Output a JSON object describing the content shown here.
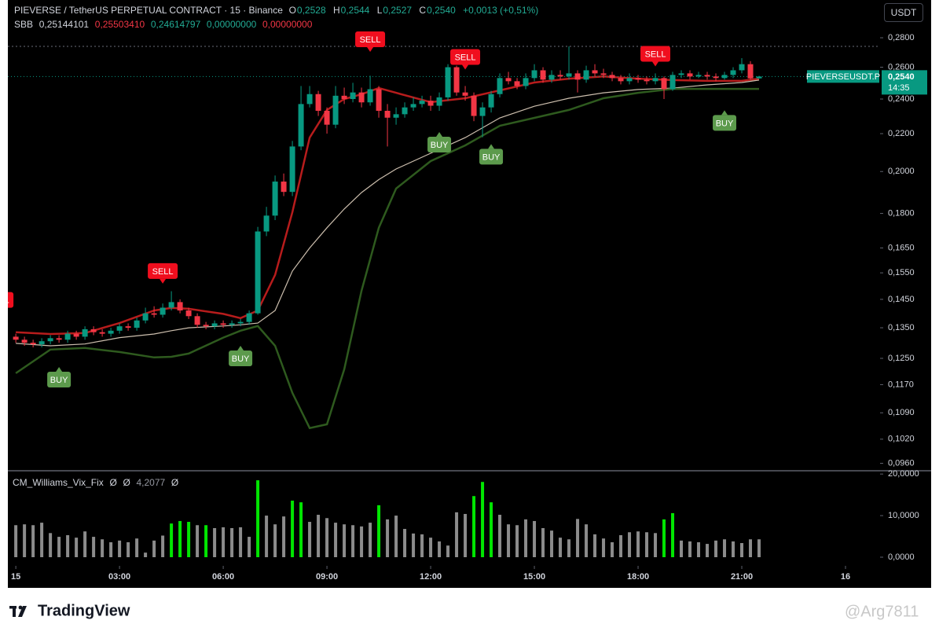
{
  "header": {
    "title": "PIEVERSE / TetherUS PERPETUAL CONTRACT · 15 · Binance",
    "ohlc": [
      {
        "label": "O",
        "value": "0,2528"
      },
      {
        "label": "H",
        "value": "0,2544"
      },
      {
        "label": "L",
        "value": "0,2527"
      },
      {
        "label": "C",
        "value": "0,2540"
      }
    ],
    "change": "+0,0013 (+0,51%)"
  },
  "toolbar": {
    "currency": "USDT"
  },
  "footer": {
    "brand": "TradingView",
    "watermark": "@Arg7811"
  },
  "chart_data": [
    {
      "type": "candlestick",
      "log_scale": true,
      "grid": false,
      "up_color": "#089981",
      "down_color": "#f23645",
      "xlim": [
        -0.23,
        25
      ],
      "ylim": [
        0.0944,
        0.3079
      ],
      "xticks": [
        {
          "value": 0,
          "label": "15"
        },
        {
          "value": 3,
          "label": "03:00"
        },
        {
          "value": 6,
          "label": "06:00"
        },
        {
          "value": 9,
          "label": "09:00"
        },
        {
          "value": 12,
          "label": "12:00"
        },
        {
          "value": 15,
          "label": "15:00"
        },
        {
          "value": 18,
          "label": "18:00"
        },
        {
          "value": 21,
          "label": "21:00"
        },
        {
          "value": 24,
          "label": "16"
        }
      ],
      "yticks": [
        {
          "value": 0.28,
          "label": "0,2800"
        },
        {
          "value": 0.26,
          "label": "0,2600"
        },
        {
          "value": 0.24,
          "label": "0,2400"
        },
        {
          "value": 0.22,
          "label": "0,2200"
        },
        {
          "value": 0.2,
          "label": "0,2000"
        },
        {
          "value": 0.18,
          "label": "0,1800"
        },
        {
          "value": 0.165,
          "label": "0,1650"
        },
        {
          "value": 0.155,
          "label": "0,1550"
        },
        {
          "value": 0.145,
          "label": "0,1450"
        },
        {
          "value": 0.135,
          "label": "0,1350"
        },
        {
          "value": 0.125,
          "label": "0,1250"
        },
        {
          "value": 0.117,
          "label": "0,1170"
        },
        {
          "value": 0.109,
          "label": "0,1090"
        },
        {
          "value": 0.102,
          "label": "0,1020"
        },
        {
          "value": 0.096,
          "label": "0,0960"
        }
      ],
      "x": [
        0,
        0.25,
        0.5,
        0.75,
        1,
        1.25,
        1.5,
        1.75,
        2,
        2.25,
        2.5,
        2.75,
        3,
        3.25,
        3.5,
        3.75,
        4,
        4.25,
        4.5,
        4.75,
        5,
        5.25,
        5.5,
        5.75,
        6,
        6.25,
        6.5,
        6.75,
        7,
        7.25,
        7.5,
        7.75,
        8,
        8.25,
        8.5,
        8.75,
        9,
        9.25,
        9.5,
        9.75,
        10,
        10.25,
        10.5,
        10.75,
        11,
        11.25,
        11.5,
        11.75,
        12,
        12.25,
        12.5,
        12.75,
        13,
        13.25,
        13.5,
        13.75,
        14,
        14.25,
        14.5,
        14.75,
        15,
        15.25,
        15.5,
        15.75,
        16,
        16.25,
        16.5,
        16.75,
        17,
        17.25,
        17.5,
        17.75,
        18,
        18.25,
        18.5,
        18.75,
        19,
        19.25,
        19.5,
        19.75,
        20,
        20.25,
        20.5,
        20.75,
        21,
        21.25,
        21.5
      ],
      "open": [
        0.132,
        0.131,
        0.13,
        0.1295,
        0.1305,
        0.1315,
        0.131,
        0.133,
        0.132,
        0.1345,
        0.1335,
        0.133,
        0.134,
        0.1355,
        0.135,
        0.1375,
        0.14,
        0.1395,
        0.142,
        0.144,
        0.141,
        0.139,
        0.136,
        0.1355,
        0.1365,
        0.136,
        0.1365,
        0.137,
        0.14,
        0.172,
        0.179,
        0.195,
        0.19,
        0.213,
        0.237,
        0.243,
        0.233,
        0.225,
        0.242,
        0.24,
        0.244,
        0.238,
        0.246,
        0.233,
        0.229,
        0.231,
        0.235,
        0.237,
        0.239,
        0.236,
        0.241,
        0.26,
        0.244,
        0.242,
        0.23,
        0.235,
        0.243,
        0.253,
        0.251,
        0.248,
        0.253,
        0.258,
        0.252,
        0.255,
        0.254,
        0.256,
        0.252,
        0.258,
        0.256,
        0.255,
        0.253,
        0.251,
        0.253,
        0.252,
        0.251,
        0.253,
        0.246,
        0.255,
        0.256,
        0.254,
        0.255,
        0.254,
        0.253,
        0.255,
        0.258,
        0.262,
        0.2528
      ],
      "high": [
        0.133,
        0.132,
        0.131,
        0.1315,
        0.1325,
        0.1325,
        0.134,
        0.134,
        0.1355,
        0.1355,
        0.1345,
        0.135,
        0.1365,
        0.1365,
        0.1385,
        0.142,
        0.1425,
        0.1435,
        0.148,
        0.145,
        0.142,
        0.14,
        0.137,
        0.1375,
        0.1375,
        0.1375,
        0.138,
        0.141,
        0.174,
        0.183,
        0.198,
        0.199,
        0.216,
        0.248,
        0.248,
        0.245,
        0.235,
        0.248,
        0.247,
        0.25,
        0.247,
        0.2545,
        0.248,
        0.237,
        0.235,
        0.238,
        0.241,
        0.242,
        0.242,
        0.244,
        0.262,
        0.261,
        0.248,
        0.244,
        0.238,
        0.245,
        0.256,
        0.257,
        0.253,
        0.256,
        0.262,
        0.26,
        0.258,
        0.258,
        0.274,
        0.258,
        0.261,
        0.262,
        0.259,
        0.257,
        0.255,
        0.256,
        0.255,
        0.254,
        0.256,
        0.254,
        0.257,
        0.258,
        0.258,
        0.257,
        0.257,
        0.256,
        0.257,
        0.26,
        0.266,
        0.264,
        0.2544
      ],
      "low": [
        0.13,
        0.129,
        0.1285,
        0.1285,
        0.1295,
        0.13,
        0.13,
        0.131,
        0.131,
        0.1325,
        0.132,
        0.132,
        0.133,
        0.134,
        0.134,
        0.1365,
        0.1385,
        0.1385,
        0.141,
        0.14,
        0.138,
        0.135,
        0.1345,
        0.1345,
        0.135,
        0.135,
        0.1355,
        0.136,
        0.1395,
        0.17,
        0.177,
        0.188,
        0.188,
        0.211,
        0.235,
        0.23,
        0.22,
        0.223,
        0.237,
        0.238,
        0.235,
        0.236,
        0.229,
        0.213,
        0.225,
        0.229,
        0.233,
        0.235,
        0.233,
        0.233,
        0.239,
        0.242,
        0.239,
        0.227,
        0.218,
        0.232,
        0.241,
        0.249,
        0.246,
        0.246,
        0.251,
        0.25,
        0.25,
        0.252,
        0.252,
        0.244,
        0.25,
        0.254,
        0.253,
        0.251,
        0.249,
        0.249,
        0.25,
        0.249,
        0.249,
        0.24,
        0.245,
        0.253,
        0.252,
        0.253,
        0.252,
        0.251,
        0.252,
        0.253,
        0.256,
        0.252,
        0.2527
      ],
      "close": [
        0.131,
        0.13,
        0.1295,
        0.1305,
        0.1315,
        0.131,
        0.133,
        0.132,
        0.1345,
        0.1335,
        0.133,
        0.134,
        0.1355,
        0.135,
        0.1375,
        0.14,
        0.1395,
        0.142,
        0.144,
        0.141,
        0.139,
        0.136,
        0.1355,
        0.1365,
        0.136,
        0.1365,
        0.137,
        0.14,
        0.172,
        0.179,
        0.195,
        0.19,
        0.213,
        0.237,
        0.243,
        0.233,
        0.225,
        0.242,
        0.24,
        0.244,
        0.238,
        0.246,
        0.233,
        0.229,
        0.231,
        0.235,
        0.237,
        0.239,
        0.236,
        0.241,
        0.26,
        0.244,
        0.242,
        0.23,
        0.235,
        0.243,
        0.253,
        0.251,
        0.248,
        0.253,
        0.258,
        0.252,
        0.255,
        0.254,
        0.256,
        0.252,
        0.258,
        0.256,
        0.255,
        0.253,
        0.251,
        0.253,
        0.252,
        0.251,
        0.253,
        0.246,
        0.255,
        0.256,
        0.254,
        0.255,
        0.254,
        0.253,
        0.255,
        0.258,
        0.262,
        0.2528,
        0.254
      ],
      "indicator": {
        "name": "SBB",
        "values": [
          {
            "text": "0,25144101",
            "color": "#d1d4dc"
          },
          {
            "text": "0,25503410",
            "color": "#f23645"
          },
          {
            "text": "0,24614797",
            "color": "#22ab94"
          },
          {
            "text": "0,00000000",
            "color": "#22ab94"
          },
          {
            "text": "0,00000000",
            "color": "#f23645"
          }
        ]
      },
      "line_x": [
        0,
        1,
        2,
        3,
        4,
        4.5,
        5,
        6,
        6.5,
        7,
        7.5,
        8,
        8.5,
        9,
        9.5,
        10,
        10.5,
        11,
        12,
        13,
        14,
        15,
        16,
        17,
        18,
        19,
        20,
        21,
        21.5
      ],
      "lines": [
        {
          "color": "#b71c1c",
          "width": 2.5,
          "values": [
            0.1335,
            0.1329,
            0.1332,
            0.1366,
            0.141,
            0.1419,
            0.1416,
            0.1398,
            0.1383,
            0.141,
            0.1542,
            0.1806,
            0.2178,
            0.2335,
            0.24,
            0.2429,
            0.2467,
            0.2438,
            0.2381,
            0.2405,
            0.2453,
            0.2502,
            0.2526,
            0.254,
            0.2526,
            0.2517,
            0.2512,
            0.2512,
            0.2526
          ]
        },
        {
          "color": "#cdbfae",
          "width": 1.2,
          "values": [
            0.1298,
            0.129,
            0.1296,
            0.1317,
            0.1329,
            0.134,
            0.135,
            0.1356,
            0.136,
            0.1366,
            0.141,
            0.1557,
            0.165,
            0.1736,
            0.182,
            0.1897,
            0.196,
            0.2013,
            0.2094,
            0.2178,
            0.2289,
            0.2357,
            0.2405,
            0.2438,
            0.2458,
            0.2467,
            0.2487,
            0.2502,
            0.2517
          ]
        },
        {
          "color": "#2e5a1e",
          "width": 2.5,
          "values": [
            0.1204,
            0.1278,
            0.1283,
            0.127,
            0.1253,
            0.1255,
            0.1265,
            0.1317,
            0.134,
            0.1356,
            0.129,
            0.1146,
            0.1049,
            0.1059,
            0.1216,
            0.1482,
            0.1736,
            0.1916,
            0.2053,
            0.2136,
            0.2244,
            0.2289,
            0.2335,
            0.2405,
            0.2438,
            0.2462,
            0.2462,
            0.2462,
            0.2462
          ]
        }
      ],
      "signals": [
        {
          "label": "SELL",
          "x": -0.5,
          "price": 0.1448,
          "color": "#f00e1e"
        },
        {
          "label": "BUY",
          "x": 1.25,
          "price": 0.1185,
          "color": "#5c9a4c"
        },
        {
          "label": "SELL",
          "x": 4.25,
          "price": 0.1557,
          "color": "#f00e1e"
        },
        {
          "label": "BUY",
          "x": 6.5,
          "price": 0.125,
          "color": "#5c9a4c"
        },
        {
          "label": "SELL",
          "x": 10.25,
          "price": 0.2789,
          "color": "#f00e1e"
        },
        {
          "label": "BUY",
          "x": 12.25,
          "price": 0.214,
          "color": "#5c9a4c"
        },
        {
          "label": "SELL",
          "x": 13,
          "price": 0.2668,
          "color": "#f00e1e"
        },
        {
          "label": "BUY",
          "x": 13.75,
          "price": 0.2076,
          "color": "#5c9a4c"
        },
        {
          "label": "SELL",
          "x": 18.5,
          "price": 0.2689,
          "color": "#f00e1e"
        },
        {
          "label": "BUY",
          "x": 20.5,
          "price": 0.226,
          "color": "#5c9a4c"
        }
      ],
      "price_tag": {
        "symbol": "PIEVERSEUSDT.P",
        "price": "0,2540",
        "countdown": "14:35",
        "color": "#089981"
      }
    },
    {
      "type": "bar",
      "title": "CM_Williams_Vix_Fix",
      "legend_values": [
        "Ø",
        "Ø",
        "4,2077",
        "Ø"
      ],
      "xlim": [
        -0.23,
        25
      ],
      "ylim": [
        -1.7,
        20.6
      ],
      "yticks": [
        {
          "value": 20,
          "label": "20,0000"
        },
        {
          "value": 10,
          "label": "10,0000"
        },
        {
          "value": 0,
          "label": "0,0000"
        }
      ],
      "x": [
        0,
        0.25,
        0.5,
        0.75,
        1,
        1.25,
        1.5,
        1.75,
        2,
        2.25,
        2.5,
        2.75,
        3,
        3.25,
        3.5,
        3.75,
        4,
        4.25,
        4.5,
        4.75,
        5,
        5.25,
        5.5,
        5.75,
        6,
        6.25,
        6.5,
        6.75,
        7,
        7.25,
        7.5,
        7.75,
        8,
        8.25,
        8.5,
        8.75,
        9,
        9.25,
        9.5,
        9.75,
        10,
        10.25,
        10.5,
        10.75,
        11,
        11.25,
        11.5,
        11.75,
        12,
        12.25,
        12.5,
        12.75,
        13,
        13.25,
        13.5,
        13.75,
        14,
        14.25,
        14.5,
        14.75,
        15,
        15.25,
        15.5,
        15.75,
        16,
        16.25,
        16.5,
        16.75,
        17,
        17.25,
        17.5,
        17.75,
        18,
        18.25,
        18.5,
        18.75,
        19,
        19.25,
        19.5,
        19.75,
        20,
        20.25,
        20.5,
        20.75,
        21,
        21.25,
        21.5
      ],
      "values": [
        7.7,
        7.9,
        7.7,
        8.3,
        5.8,
        4.9,
        5.3,
        4.7,
        6.2,
        4.9,
        4.3,
        3.6,
        4.0,
        3.6,
        4.5,
        1.1,
        4.0,
        5.2,
        8.1,
        8.7,
        8.5,
        7.7,
        7.7,
        7.0,
        7.2,
        7.0,
        7.2,
        4.9,
        18.5,
        10.0,
        7.9,
        9.8,
        13.6,
        13.2,
        8.5,
        10.2,
        9.4,
        8.3,
        7.9,
        7.7,
        7.4,
        8.3,
        12.5,
        9.1,
        10.0,
        6.8,
        5.7,
        5.5,
        4.7,
        3.8,
        2.8,
        10.8,
        10.4,
        14.7,
        18.1,
        13.2,
        10.2,
        7.9,
        7.7,
        9.1,
        8.7,
        7.0,
        6.4,
        4.7,
        4.3,
        9.2,
        7.9,
        5.5,
        4.5,
        3.6,
        5.3,
        6.0,
        6.2,
        6.0,
        5.8,
        9.1,
        10.6,
        4.0,
        3.8,
        3.6,
        3.2,
        4.0,
        4.3,
        3.8,
        3.4,
        4.3,
        4.3
      ],
      "colors": [
        "#8c8c8c",
        "#8c8c8c",
        "#8c8c8c",
        "#8c8c8c",
        "#8c8c8c",
        "#8c8c8c",
        "#8c8c8c",
        "#8c8c8c",
        "#8c8c8c",
        "#8c8c8c",
        "#8c8c8c",
        "#8c8c8c",
        "#8c8c8c",
        "#8c8c8c",
        "#8c8c8c",
        "#8c8c8c",
        "#8c8c8c",
        "#8c8c8c",
        "#00e600",
        "#00e600",
        "#00e600",
        "#8c8c8c",
        "#00e600",
        "#8c8c8c",
        "#8c8c8c",
        "#8c8c8c",
        "#8c8c8c",
        "#8c8c8c",
        "#00e600",
        "#8c8c8c",
        "#8c8c8c",
        "#8c8c8c",
        "#00e600",
        "#00e600",
        "#8c8c8c",
        "#8c8c8c",
        "#8c8c8c",
        "#8c8c8c",
        "#8c8c8c",
        "#8c8c8c",
        "#8c8c8c",
        "#8c8c8c",
        "#00e600",
        "#8c8c8c",
        "#8c8c8c",
        "#8c8c8c",
        "#8c8c8c",
        "#8c8c8c",
        "#8c8c8c",
        "#8c8c8c",
        "#8c8c8c",
        "#8c8c8c",
        "#8c8c8c",
        "#00e600",
        "#00e600",
        "#00e600",
        "#8c8c8c",
        "#8c8c8c",
        "#8c8c8c",
        "#8c8c8c",
        "#8c8c8c",
        "#8c8c8c",
        "#8c8c8c",
        "#8c8c8c",
        "#8c8c8c",
        "#8c8c8c",
        "#8c8c8c",
        "#8c8c8c",
        "#8c8c8c",
        "#8c8c8c",
        "#8c8c8c",
        "#8c8c8c",
        "#8c8c8c",
        "#8c8c8c",
        "#8c8c8c",
        "#00e600",
        "#00e600",
        "#8c8c8c",
        "#8c8c8c",
        "#8c8c8c",
        "#8c8c8c",
        "#8c8c8c",
        "#8c8c8c",
        "#8c8c8c",
        "#8c8c8c",
        "#8c8c8c",
        "#8c8c8c"
      ]
    }
  ]
}
